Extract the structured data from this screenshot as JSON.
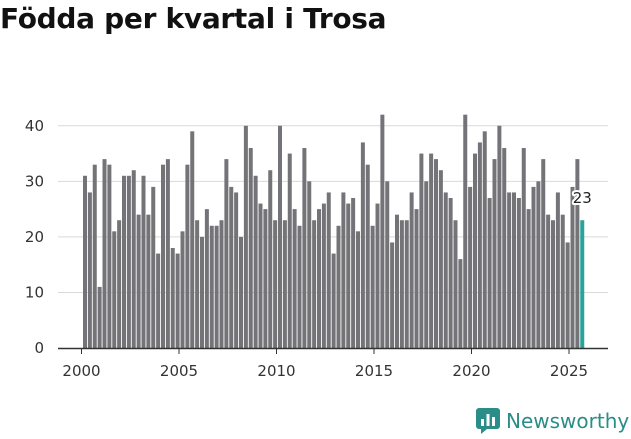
{
  "title": "Födda per kvartal i Trosa",
  "brand": {
    "name": "Newsworthy",
    "color": "#2a8d88"
  },
  "colors": {
    "bar": "#747378",
    "highlight": "#2aa39b",
    "grid": "#d9d9d9",
    "axis": "#333333"
  },
  "chart_data": {
    "type": "bar",
    "title": "Födda per kvartal i Trosa",
    "xlabel": "",
    "ylabel": "",
    "ylim": [
      0,
      45
    ],
    "y_ticks": [
      0,
      10,
      20,
      30,
      40
    ],
    "x_ticks": [
      2000,
      2005,
      2010,
      2015,
      2020,
      2025
    ],
    "grid": true,
    "categories": [
      "2000 K1",
      "2000 K2",
      "2000 K3",
      "2000 K4",
      "2001 K1",
      "2001 K2",
      "2001 K3",
      "2001 K4",
      "2002 K1",
      "2002 K2",
      "2002 K3",
      "2002 K4",
      "2003 K1",
      "2003 K2",
      "2003 K3",
      "2003 K4",
      "2004 K1",
      "2004 K2",
      "2004 K3",
      "2004 K4",
      "2005 K1",
      "2005 K2",
      "2005 K3",
      "2005 K4",
      "2006 K1",
      "2006 K2",
      "2006 K3",
      "2006 K4",
      "2007 K1",
      "2007 K2",
      "2007 K3",
      "2007 K4",
      "2008 K1",
      "2008 K2",
      "2008 K3",
      "2008 K4",
      "2009 K1",
      "2009 K2",
      "2009 K3",
      "2009 K4",
      "2010 K1",
      "2010 K2",
      "2010 K3",
      "2010 K4",
      "2011 K1",
      "2011 K2",
      "2011 K3",
      "2011 K4",
      "2012 K1",
      "2012 K2",
      "2012 K3",
      "2012 K4",
      "2013 K1",
      "2013 K2",
      "2013 K3",
      "2013 K4",
      "2014 K1",
      "2014 K2",
      "2014 K3",
      "2014 K4",
      "2015 K1",
      "2015 K2",
      "2015 K3",
      "2015 K4",
      "2016 K1",
      "2016 K2",
      "2016 K3",
      "2016 K4",
      "2017 K1",
      "2017 K2",
      "2017 K3",
      "2017 K4",
      "2018 K1",
      "2018 K2",
      "2018 K3",
      "2018 K4",
      "2019 K1",
      "2019 K2",
      "2019 K3",
      "2019 K4",
      "2020 K1",
      "2020 K2",
      "2020 K3",
      "2020 K4",
      "2021 K1",
      "2021 K2",
      "2021 K3",
      "2021 K4",
      "2022 K1",
      "2022 K2",
      "2022 K3",
      "2022 K4",
      "2023 K1",
      "2023 K2",
      "2023 K3",
      "2023 K4",
      "2024 K1",
      "2024 K2",
      "2024 K3",
      "2024 K4",
      "2025 K1",
      "2025 K2",
      "2025 K3"
    ],
    "values": [
      31,
      28,
      33,
      11,
      34,
      33,
      21,
      23,
      31,
      31,
      32,
      24,
      31,
      24,
      29,
      17,
      33,
      34,
      18,
      17,
      21,
      33,
      39,
      23,
      20,
      25,
      22,
      22,
      23,
      34,
      29,
      28,
      20,
      40,
      36,
      31,
      26,
      25,
      32,
      23,
      40,
      23,
      35,
      25,
      22,
      36,
      30,
      23,
      25,
      26,
      28,
      17,
      22,
      28,
      26,
      27,
      21,
      37,
      33,
      22,
      26,
      42,
      30,
      19,
      24,
      23,
      23,
      28,
      25,
      35,
      30,
      35,
      34,
      32,
      28,
      27,
      23,
      16,
      42,
      29,
      35,
      37,
      39,
      27,
      34,
      40,
      36,
      28,
      28,
      27,
      36,
      25,
      29,
      30,
      34,
      24,
      23,
      28,
      24,
      19,
      29,
      34,
      23
    ],
    "highlight_index": 102,
    "annotation": {
      "label": "23"
    }
  }
}
